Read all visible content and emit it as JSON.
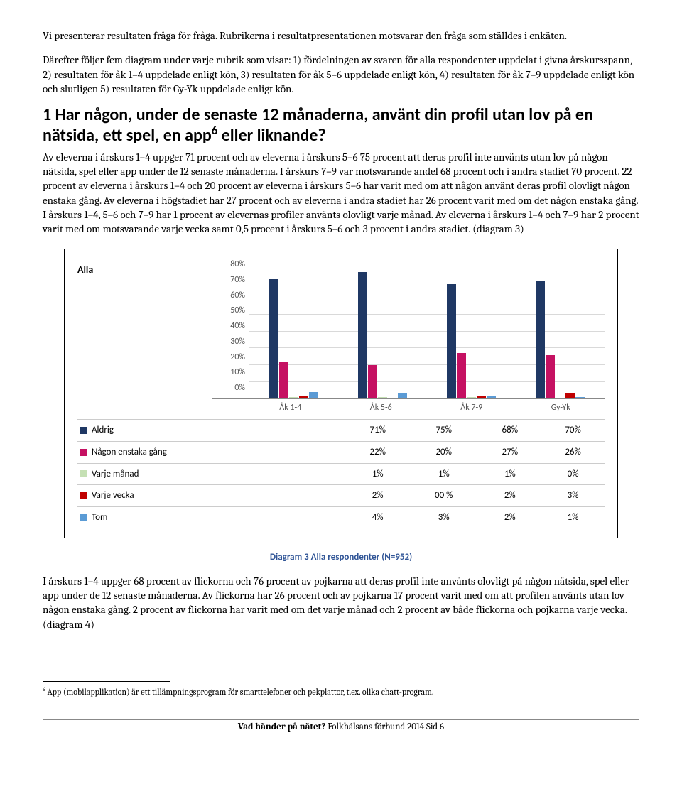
{
  "intro": {
    "p1": "Vi presenterar resultaten fråga för fråga. Rubrikerna i resultatpresentationen motsvarar den fråga som ställdes i enkäten.",
    "p2": "Därefter följer fem diagram under varje rubrik som visar: 1) fördelningen av svaren för alla respondenter uppdelat i givna årskursspann, 2) resultaten för åk 1–4 uppdelade enligt kön, 3) resultaten för åk 5–6 uppdelade enligt kön, 4) resultaten för åk 7–9 uppdelade enligt kön och slutligen 5) resultaten för Gy-Yk uppdelade enligt kön."
  },
  "heading": {
    "prefix": "1 Har någon, under de senaste 12 månaderna, använt din profil utan lov på en nätsida, ett spel, en app",
    "sup": "6",
    "suffix": " eller liknande?"
  },
  "body1": "Av eleverna i årskurs 1–4 uppger 71 procent och av eleverna i årskurs 5–6 75 procent att deras profil inte använts utan lov på någon nätsida, spel eller app under de 12 senaste månaderna. I årskurs 7–9 var motsvarande andel 68 procent och i andra stadiet 70 procent. 22 procent av eleverna i årskurs 1–4 och 20 procent av eleverna i årskurs 5–6 har varit med om att någon använt deras profil olovligt någon enstaka gång. Av eleverna i högstadiet har 27 procent och av eleverna i andra stadiet har 26 procent varit med om det någon enstaka gång. I årskurs 1–4, 5–6 och 7–9 har 1 procent av elevernas profiler använts olovligt varje månad. Av eleverna i årskurs 1–4 och 7–9 har 2 procent varit med om motsvarande varje vecka samt 0,5 procent i årskurs 5–6 och 3 procent i andra stadiet. (diagram 3)",
  "chart": {
    "title": "Alla",
    "type": "bar",
    "ymax": 80,
    "ytick_step": 10,
    "yticks": [
      "80%",
      "70%",
      "60%",
      "50%",
      "40%",
      "30%",
      "20%",
      "10%",
      "0%"
    ],
    "categories": [
      "Åk 1-4",
      "Åk 5-6",
      "Åk 7-9",
      "Gy-Yk"
    ],
    "series": [
      {
        "label": "Aldrig",
        "color": "#1f3864",
        "values": [
          71,
          75,
          68,
          70
        ],
        "display": [
          "71%",
          "75%",
          "68%",
          "70%"
        ]
      },
      {
        "label": "Någon enstaka gång",
        "color": "#c51162",
        "values": [
          22,
          20,
          27,
          26
        ],
        "display": [
          "22%",
          "20%",
          "27%",
          "26%"
        ]
      },
      {
        "label": "Varje månad",
        "color": "#c5e0b4",
        "values": [
          1,
          1,
          1,
          0
        ],
        "display": [
          "1%",
          "1%",
          "1%",
          "0%"
        ]
      },
      {
        "label": "Varje vecka",
        "color": "#c00000",
        "values": [
          2,
          0.5,
          2,
          3
        ],
        "display": [
          "2%",
          "00 %",
          "2%",
          "3%"
        ]
      },
      {
        "label": "Tom",
        "color": "#5b9bd5",
        "values": [
          4,
          3,
          2,
          1
        ],
        "display": [
          "4%",
          "3%",
          "2%",
          "1%"
        ]
      }
    ]
  },
  "caption": "Diagram 3 Alla respondenter (N=952)",
  "body2": "I årskurs 1–4 uppger 68 procent av flickorna och 76 procent av pojkarna att deras profil inte använts olovligt på någon nätsida, spel eller app under de 12 senaste månaderna. Av flickorna har 26 procent och av pojkarna 17 procent varit med om att profilen använts utan lov någon enstaka gång. 2 procent av flickorna har varit med om det varje månad och 2 procent av både flickorna och pojkarna varje vecka. (diagram 4)",
  "footnote": {
    "num": "6",
    "text": " App (mobilapplikation) är ett tillämpningsprogram för smarttelefoner och pekplattor, t.ex. olika chatt-program."
  },
  "footer": {
    "bold": "Vad händer på nätet?",
    "rest": " Folkhälsans förbund 2014 Sid 6"
  }
}
